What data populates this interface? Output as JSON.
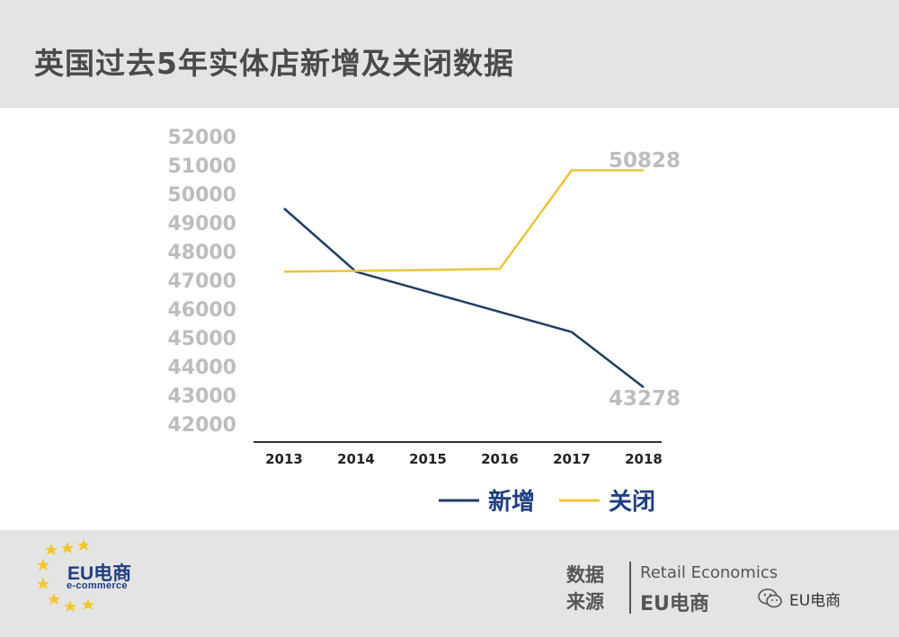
{
  "title": "英国过去5年实体店新增及关闭数据",
  "chart_data": {
    "type": "line",
    "categories": [
      "2013",
      "2014",
      "2015",
      "2016",
      "2017",
      "2018"
    ],
    "y_ticks": [
      "52000",
      "51000",
      "50000",
      "49000",
      "48000",
      "47000",
      "46000",
      "45000",
      "44000",
      "43000",
      "42000"
    ],
    "ylim": [
      42000,
      52000
    ],
    "series": [
      {
        "name": "新增",
        "color": "#1f3d64",
        "values": [
          49500,
          47300,
          46600,
          45900,
          45200,
          43278
        ]
      },
      {
        "name": "关闭",
        "color": "#f0c23a",
        "values": [
          47300,
          47330,
          47360,
          47400,
          50828,
          50828
        ]
      }
    ],
    "annotations": [
      "50828",
      "43278"
    ],
    "legend_position": "bottom-right",
    "grid": false
  },
  "logo": {
    "main": "EU电商",
    "sub": "e-commerce"
  },
  "source": {
    "label": "数据来源",
    "line1": "Retail Economics",
    "line2": "EU电商"
  },
  "watermark": "EU电商",
  "colors": {
    "axis": "#333333",
    "tick": "#bdbdbd",
    "header_bg": "#e4e4e4"
  }
}
